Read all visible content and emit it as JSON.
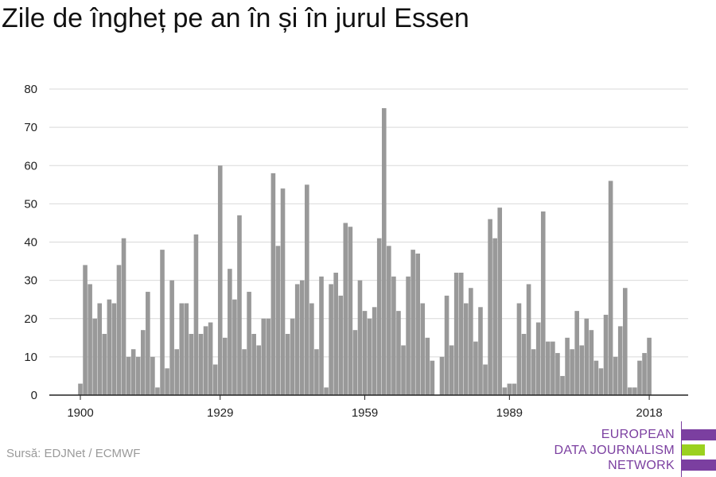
{
  "title": "Zile de îngheț pe an în și în jurul Essen",
  "source": "Sursă: EDJNet / ECMWF",
  "logo": {
    "lines": [
      "EUROPEAN",
      "DATA JOURNALISM",
      "NETWORK"
    ],
    "colors": {
      "purple": "#7b3fa0",
      "green": "#9bd11f"
    }
  },
  "chart_data": {
    "type": "bar",
    "title": "Zile de îngheț pe an în și în jurul Essen",
    "xlabel": "",
    "ylabel": "",
    "ylim": [
      0,
      80
    ],
    "y_ticks": [
      0,
      10,
      20,
      30,
      40,
      50,
      60,
      70,
      80
    ],
    "x_ticks": [
      1900,
      1929,
      1959,
      1989,
      2018
    ],
    "bar_color": "#999999",
    "grid": true,
    "categories": [
      1900,
      1901,
      1902,
      1903,
      1904,
      1905,
      1906,
      1907,
      1908,
      1909,
      1910,
      1911,
      1912,
      1913,
      1914,
      1915,
      1916,
      1917,
      1918,
      1919,
      1920,
      1921,
      1922,
      1923,
      1924,
      1925,
      1926,
      1927,
      1928,
      1929,
      1930,
      1931,
      1932,
      1933,
      1934,
      1935,
      1936,
      1937,
      1938,
      1939,
      1940,
      1941,
      1942,
      1943,
      1944,
      1945,
      1946,
      1947,
      1948,
      1949,
      1950,
      1951,
      1952,
      1953,
      1954,
      1955,
      1956,
      1957,
      1958,
      1959,
      1960,
      1961,
      1962,
      1963,
      1964,
      1965,
      1966,
      1967,
      1968,
      1969,
      1970,
      1971,
      1972,
      1973,
      1974,
      1975,
      1976,
      1977,
      1978,
      1979,
      1980,
      1981,
      1982,
      1983,
      1984,
      1985,
      1986,
      1987,
      1988,
      1989,
      1990,
      1991,
      1992,
      1993,
      1994,
      1995,
      1996,
      1997,
      1998,
      1999,
      2000,
      2001,
      2002,
      2003,
      2004,
      2005,
      2006,
      2007,
      2008,
      2009,
      2010,
      2011,
      2012,
      2013,
      2014,
      2015,
      2016,
      2017,
      2018,
      2019
    ],
    "values": [
      3,
      34,
      29,
      20,
      24,
      16,
      25,
      24,
      34,
      41,
      10,
      12,
      10,
      17,
      27,
      10,
      2,
      38,
      7,
      30,
      12,
      24,
      24,
      16,
      42,
      16,
      18,
      19,
      8,
      60,
      15,
      33,
      25,
      47,
      12,
      27,
      16,
      13,
      20,
      20,
      58,
      39,
      54,
      16,
      20,
      29,
      30,
      55,
      24,
      12,
      31,
      2,
      29,
      32,
      26,
      45,
      44,
      17,
      30,
      22,
      20,
      23,
      41,
      75,
      39,
      31,
      22,
      13,
      31,
      38,
      37,
      24,
      15,
      9,
      0,
      10,
      26,
      13,
      32,
      32,
      24,
      28,
      14,
      23,
      8,
      46,
      41,
      49,
      2,
      3,
      3,
      24,
      16,
      29,
      12,
      19,
      48,
      14,
      14,
      11,
      5,
      15,
      12,
      22,
      13,
      20,
      17,
      9,
      7,
      21,
      56,
      10,
      18,
      28,
      2,
      2,
      9,
      11,
      15,
      0
    ]
  }
}
